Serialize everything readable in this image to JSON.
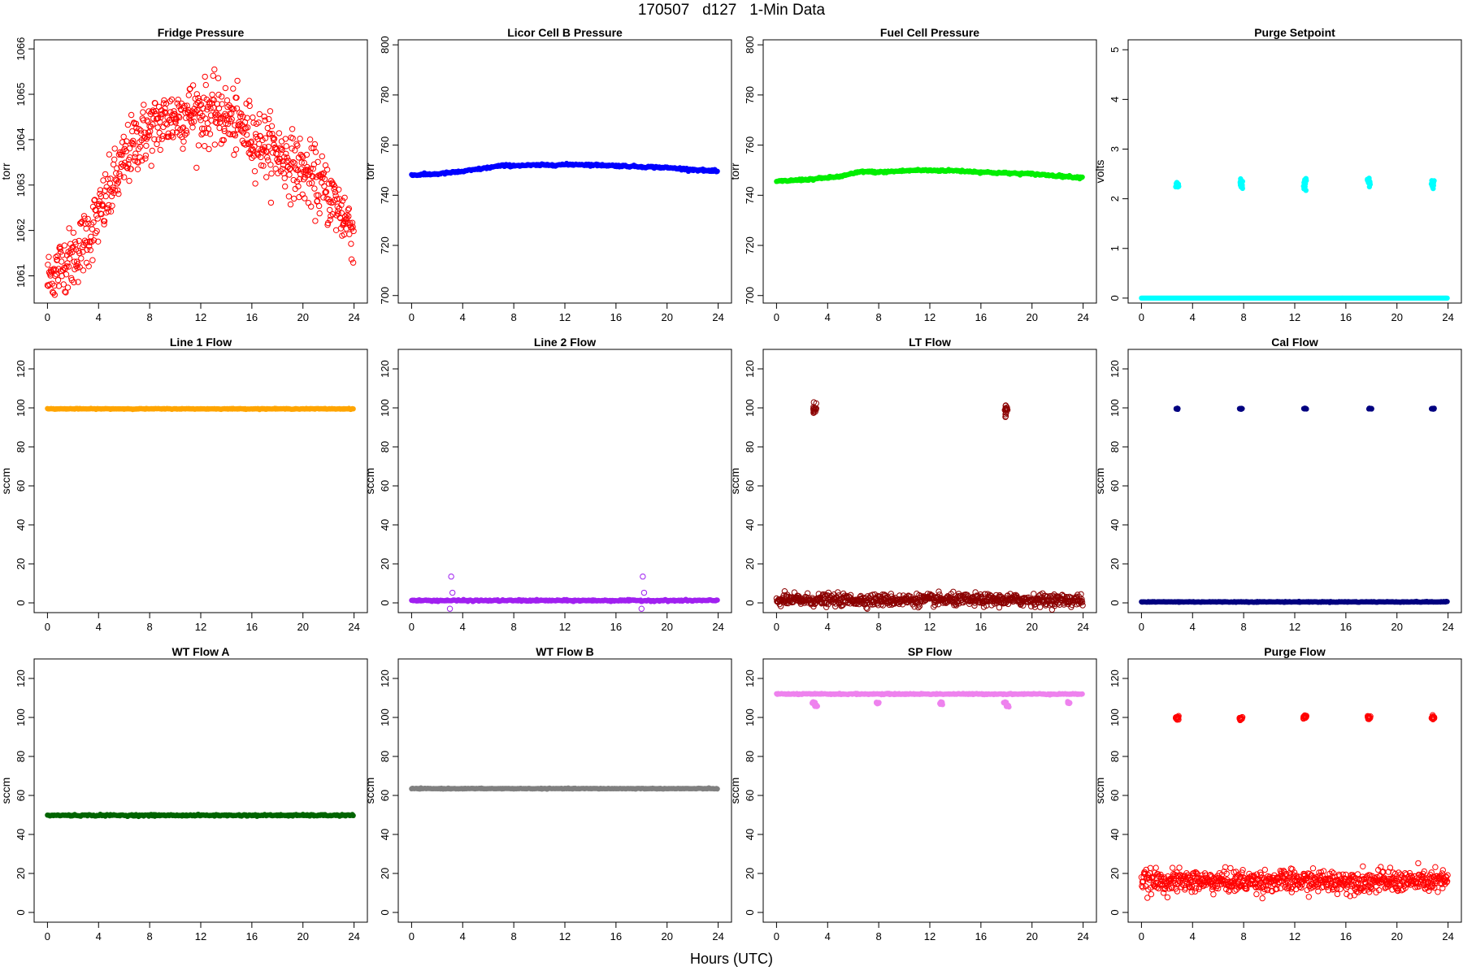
{
  "figure": {
    "title": "170507   d127   1-Min Data",
    "xlabel": "Hours (UTC)"
  },
  "chart_data": [
    {
      "type": "scatter",
      "title": "Fridge Pressure",
      "ylabel": "torr",
      "color": "#ff0000",
      "marker": "open-circle",
      "xlim": [
        0,
        24
      ],
      "ylim": [
        1060.4,
        1066.2
      ],
      "xticks": [
        0,
        4,
        8,
        12,
        16,
        20,
        24
      ],
      "yticks": [
        1061,
        1062,
        1063,
        1064,
        1065,
        1066
      ],
      "trend": [
        [
          0,
          1060.9
        ],
        [
          1,
          1061.2
        ],
        [
          2,
          1061.4
        ],
        [
          3,
          1061.8
        ],
        [
          4,
          1062.3
        ],
        [
          5,
          1062.9
        ],
        [
          6,
          1063.5
        ],
        [
          7,
          1064.0
        ],
        [
          8,
          1064.2
        ],
        [
          9,
          1064.4
        ],
        [
          10,
          1064.5
        ],
        [
          11,
          1064.6
        ],
        [
          12,
          1064.6
        ],
        [
          13,
          1064.6
        ],
        [
          14,
          1064.5
        ],
        [
          15,
          1064.3
        ],
        [
          16,
          1064.1
        ],
        [
          17,
          1063.9
        ],
        [
          18,
          1063.7
        ],
        [
          19,
          1063.5
        ],
        [
          20,
          1063.3
        ],
        [
          21,
          1063.1
        ],
        [
          22,
          1062.8
        ],
        [
          23,
          1062.4
        ],
        [
          24,
          1062.0
        ]
      ],
      "noise": 0.35
    },
    {
      "type": "scatter",
      "title": "Licor Cell B Pressure",
      "ylabel": "torr",
      "color": "#0000ff",
      "marker": "filled-circle",
      "xlim": [
        0,
        24
      ],
      "ylim": [
        697,
        802
      ],
      "xticks": [
        0,
        4,
        8,
        12,
        16,
        20,
        24
      ],
      "yticks": [
        700,
        720,
        740,
        760,
        780,
        800
      ],
      "trend": [
        [
          0,
          748
        ],
        [
          2,
          748.5
        ],
        [
          4,
          749.5
        ],
        [
          6,
          751
        ],
        [
          7,
          751.8
        ],
        [
          10,
          752
        ],
        [
          13,
          752.3
        ],
        [
          16,
          751.8
        ],
        [
          20,
          751
        ],
        [
          24,
          749.5
        ]
      ],
      "noise": 0.2
    },
    {
      "type": "scatter",
      "title": "Fuel Cell Pressure",
      "ylabel": "torr",
      "color": "#00ee00",
      "marker": "filled-circle",
      "xlim": [
        0,
        24
      ],
      "ylim": [
        697,
        802
      ],
      "xticks": [
        0,
        4,
        8,
        12,
        16,
        20,
        24
      ],
      "yticks": [
        700,
        720,
        740,
        760,
        780,
        800
      ],
      "trend": [
        [
          0,
          745.5
        ],
        [
          3,
          746.5
        ],
        [
          5,
          747.5
        ],
        [
          6.7,
          749.5
        ],
        [
          8,
          749.2
        ],
        [
          11,
          750
        ],
        [
          14,
          749.8
        ],
        [
          17,
          749
        ],
        [
          20,
          748.5
        ],
        [
          24,
          747
        ]
      ],
      "noise": 0.2
    },
    {
      "type": "scatter",
      "title": "Purge Setpoint",
      "ylabel": "volts",
      "color": "#00ffff",
      "marker": "filled-circle",
      "xlim": [
        0,
        24
      ],
      "ylim": [
        -0.1,
        5.2
      ],
      "xticks": [
        0,
        4,
        8,
        12,
        16,
        20,
        24
      ],
      "yticks": [
        0,
        1,
        2,
        3,
        4,
        5
      ],
      "baseline": 0,
      "noise": 0,
      "events": [
        {
          "x": 2.8,
          "y": 2.3
        },
        {
          "x": 7.8,
          "y": 2.32
        },
        {
          "x": 12.8,
          "y": 2.3
        },
        {
          "x": 17.8,
          "y": 2.32
        },
        {
          "x": 22.8,
          "y": 2.3
        }
      ],
      "event_spread": 0.05
    },
    {
      "type": "scatter",
      "title": "Line 1 Flow",
      "ylabel": "sccm",
      "color": "#ffa500",
      "marker": "filled-circle",
      "xlim": [
        0,
        24
      ],
      "ylim": [
        -5,
        130
      ],
      "xticks": [
        0,
        4,
        8,
        12,
        16,
        20,
        24
      ],
      "yticks": [
        0,
        20,
        40,
        60,
        80,
        100,
        120
      ],
      "baseline": 99.5,
      "noise": 0.1
    },
    {
      "type": "scatter",
      "title": "Line 2 Flow",
      "ylabel": "sccm",
      "color": "#a020f0",
      "marker": "filled-circle",
      "xlim": [
        0,
        24
      ],
      "ylim": [
        -5,
        130
      ],
      "xticks": [
        0,
        4,
        8,
        12,
        16,
        20,
        24
      ],
      "yticks": [
        0,
        20,
        40,
        60,
        80,
        100,
        120
      ],
      "baseline": 1.2,
      "noise": 0.2,
      "outliers": [
        {
          "x": 3.1,
          "y": 13.5
        },
        {
          "x": 3.2,
          "y": 5.2
        },
        {
          "x": 3.0,
          "y": -3
        },
        {
          "x": 18.1,
          "y": 13.5
        },
        {
          "x": 18.2,
          "y": 5.2
        },
        {
          "x": 18.0,
          "y": -3
        }
      ]
    },
    {
      "type": "scatter",
      "title": "LT Flow",
      "ylabel": "sccm",
      "color": "#8b0000",
      "marker": "open-circle",
      "xlim": [
        0,
        24
      ],
      "ylim": [
        -5,
        130
      ],
      "xticks": [
        0,
        4,
        8,
        12,
        16,
        20,
        24
      ],
      "yticks": [
        0,
        20,
        40,
        60,
        80,
        100,
        120
      ],
      "baseline": 1.5,
      "noise": 1.5,
      "events": [
        {
          "x": 3.0,
          "y": 99.5
        },
        {
          "x": 18.0,
          "y": 99.5
        }
      ],
      "event_spread": 1.6
    },
    {
      "type": "scatter",
      "title": "Cal Flow",
      "ylabel": "sccm",
      "color": "#000080",
      "marker": "filled-circle",
      "xlim": [
        0,
        24
      ],
      "ylim": [
        -5,
        130
      ],
      "xticks": [
        0,
        4,
        8,
        12,
        16,
        20,
        24
      ],
      "yticks": [
        0,
        20,
        40,
        60,
        80,
        100,
        120
      ],
      "baseline": 0.5,
      "noise": 0.1,
      "events": [
        {
          "x": 2.8,
          "y": 99.6
        },
        {
          "x": 7.8,
          "y": 99.6
        },
        {
          "x": 12.8,
          "y": 99.6
        },
        {
          "x": 17.9,
          "y": 99.6
        },
        {
          "x": 22.8,
          "y": 99.6
        }
      ],
      "event_spread": 0.15
    },
    {
      "type": "scatter",
      "title": "WT Flow A",
      "ylabel": "sccm",
      "color": "#006400",
      "marker": "filled-circle",
      "xlim": [
        0,
        24
      ],
      "ylim": [
        -5,
        130
      ],
      "xticks": [
        0,
        4,
        8,
        12,
        16,
        20,
        24
      ],
      "yticks": [
        0,
        20,
        40,
        60,
        80,
        100,
        120
      ],
      "baseline": 49.8,
      "noise": 0.2
    },
    {
      "type": "scatter",
      "title": "WT Flow B",
      "ylabel": "sccm",
      "color": "#808080",
      "marker": "filled-circle",
      "xlim": [
        0,
        24
      ],
      "ylim": [
        -5,
        130
      ],
      "xticks": [
        0,
        4,
        8,
        12,
        16,
        20,
        24
      ],
      "yticks": [
        0,
        20,
        40,
        60,
        80,
        100,
        120
      ],
      "baseline": 63.5,
      "noise": 0.1
    },
    {
      "type": "scatter",
      "title": "SP Flow",
      "ylabel": "sccm",
      "color": "#ee82ee",
      "marker": "filled-circle",
      "xlim": [
        0,
        24
      ],
      "ylim": [
        -5,
        130
      ],
      "xticks": [
        0,
        4,
        8,
        12,
        16,
        20,
        24
      ],
      "yticks": [
        0,
        20,
        40,
        60,
        80,
        100,
        120
      ],
      "baseline": 112,
      "noise": 0.15,
      "events": [
        {
          "x": 2.9,
          "y": 107.5
        },
        {
          "x": 3.1,
          "y": 106
        },
        {
          "x": 7.9,
          "y": 107.5
        },
        {
          "x": 12.9,
          "y": 107.5
        },
        {
          "x": 17.9,
          "y": 107.5
        },
        {
          "x": 18.1,
          "y": 106
        },
        {
          "x": 22.9,
          "y": 107.5
        }
      ],
      "event_spread": 0.3
    },
    {
      "type": "scatter",
      "title": "Purge Flow",
      "ylabel": "sccm",
      "color": "#ff0000",
      "marker": "open-circle",
      "xlim": [
        0,
        24
      ],
      "ylim": [
        -5,
        130
      ],
      "xticks": [
        0,
        4,
        8,
        12,
        16,
        20,
        24
      ],
      "yticks": [
        0,
        20,
        40,
        60,
        80,
        100,
        120
      ],
      "baseline": 16,
      "noise": 2.8,
      "events": [
        {
          "x": 2.8,
          "y": 99.8
        },
        {
          "x": 7.8,
          "y": 99.5
        },
        {
          "x": 12.8,
          "y": 100.2
        },
        {
          "x": 17.8,
          "y": 99.8
        },
        {
          "x": 22.8,
          "y": 99.8
        }
      ],
      "event_spread": 0.6
    }
  ]
}
